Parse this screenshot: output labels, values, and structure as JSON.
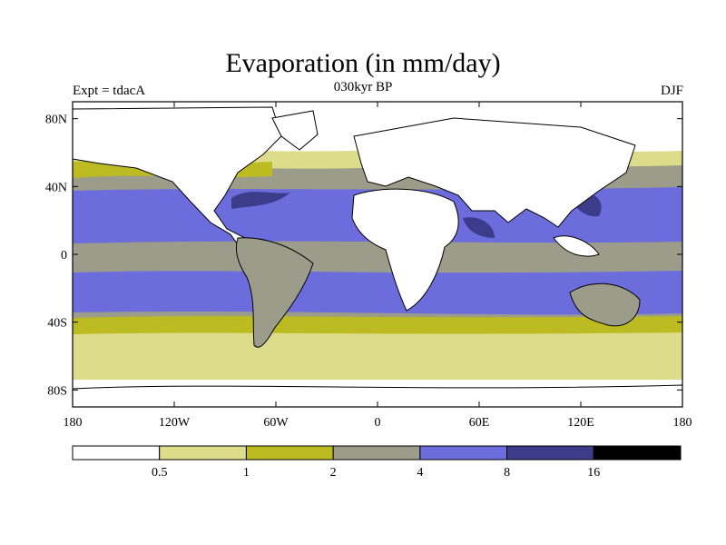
{
  "title": "Evaporation (in mm/day)",
  "left_label": "Expt = tdacA",
  "center_label": "030kyr BP",
  "right_label": "DJF",
  "map": {
    "lat_ticks": [
      "80N",
      "40N",
      "0",
      "40S",
      "80S"
    ],
    "lon_ticks": [
      "180",
      "120W",
      "60W",
      "0",
      "60E",
      "120E",
      "180"
    ],
    "projection": "cylindrical equidistant",
    "extent": {
      "lon": [
        -180,
        180
      ],
      "lat": [
        -90,
        90
      ]
    }
  },
  "colorbar": {
    "labels": [
      "0.5",
      "1",
      "2",
      "4",
      "8",
      "16"
    ],
    "colors": [
      "#ffffff",
      "#dcdc8a",
      "#bcbc22",
      "#9c9c8a",
      "#6c6cdc",
      "#3c3c8a",
      "#000000"
    ]
  },
  "colors": {
    "land": "#ffffff",
    "coast": "#000000",
    "frame": "#000000"
  }
}
